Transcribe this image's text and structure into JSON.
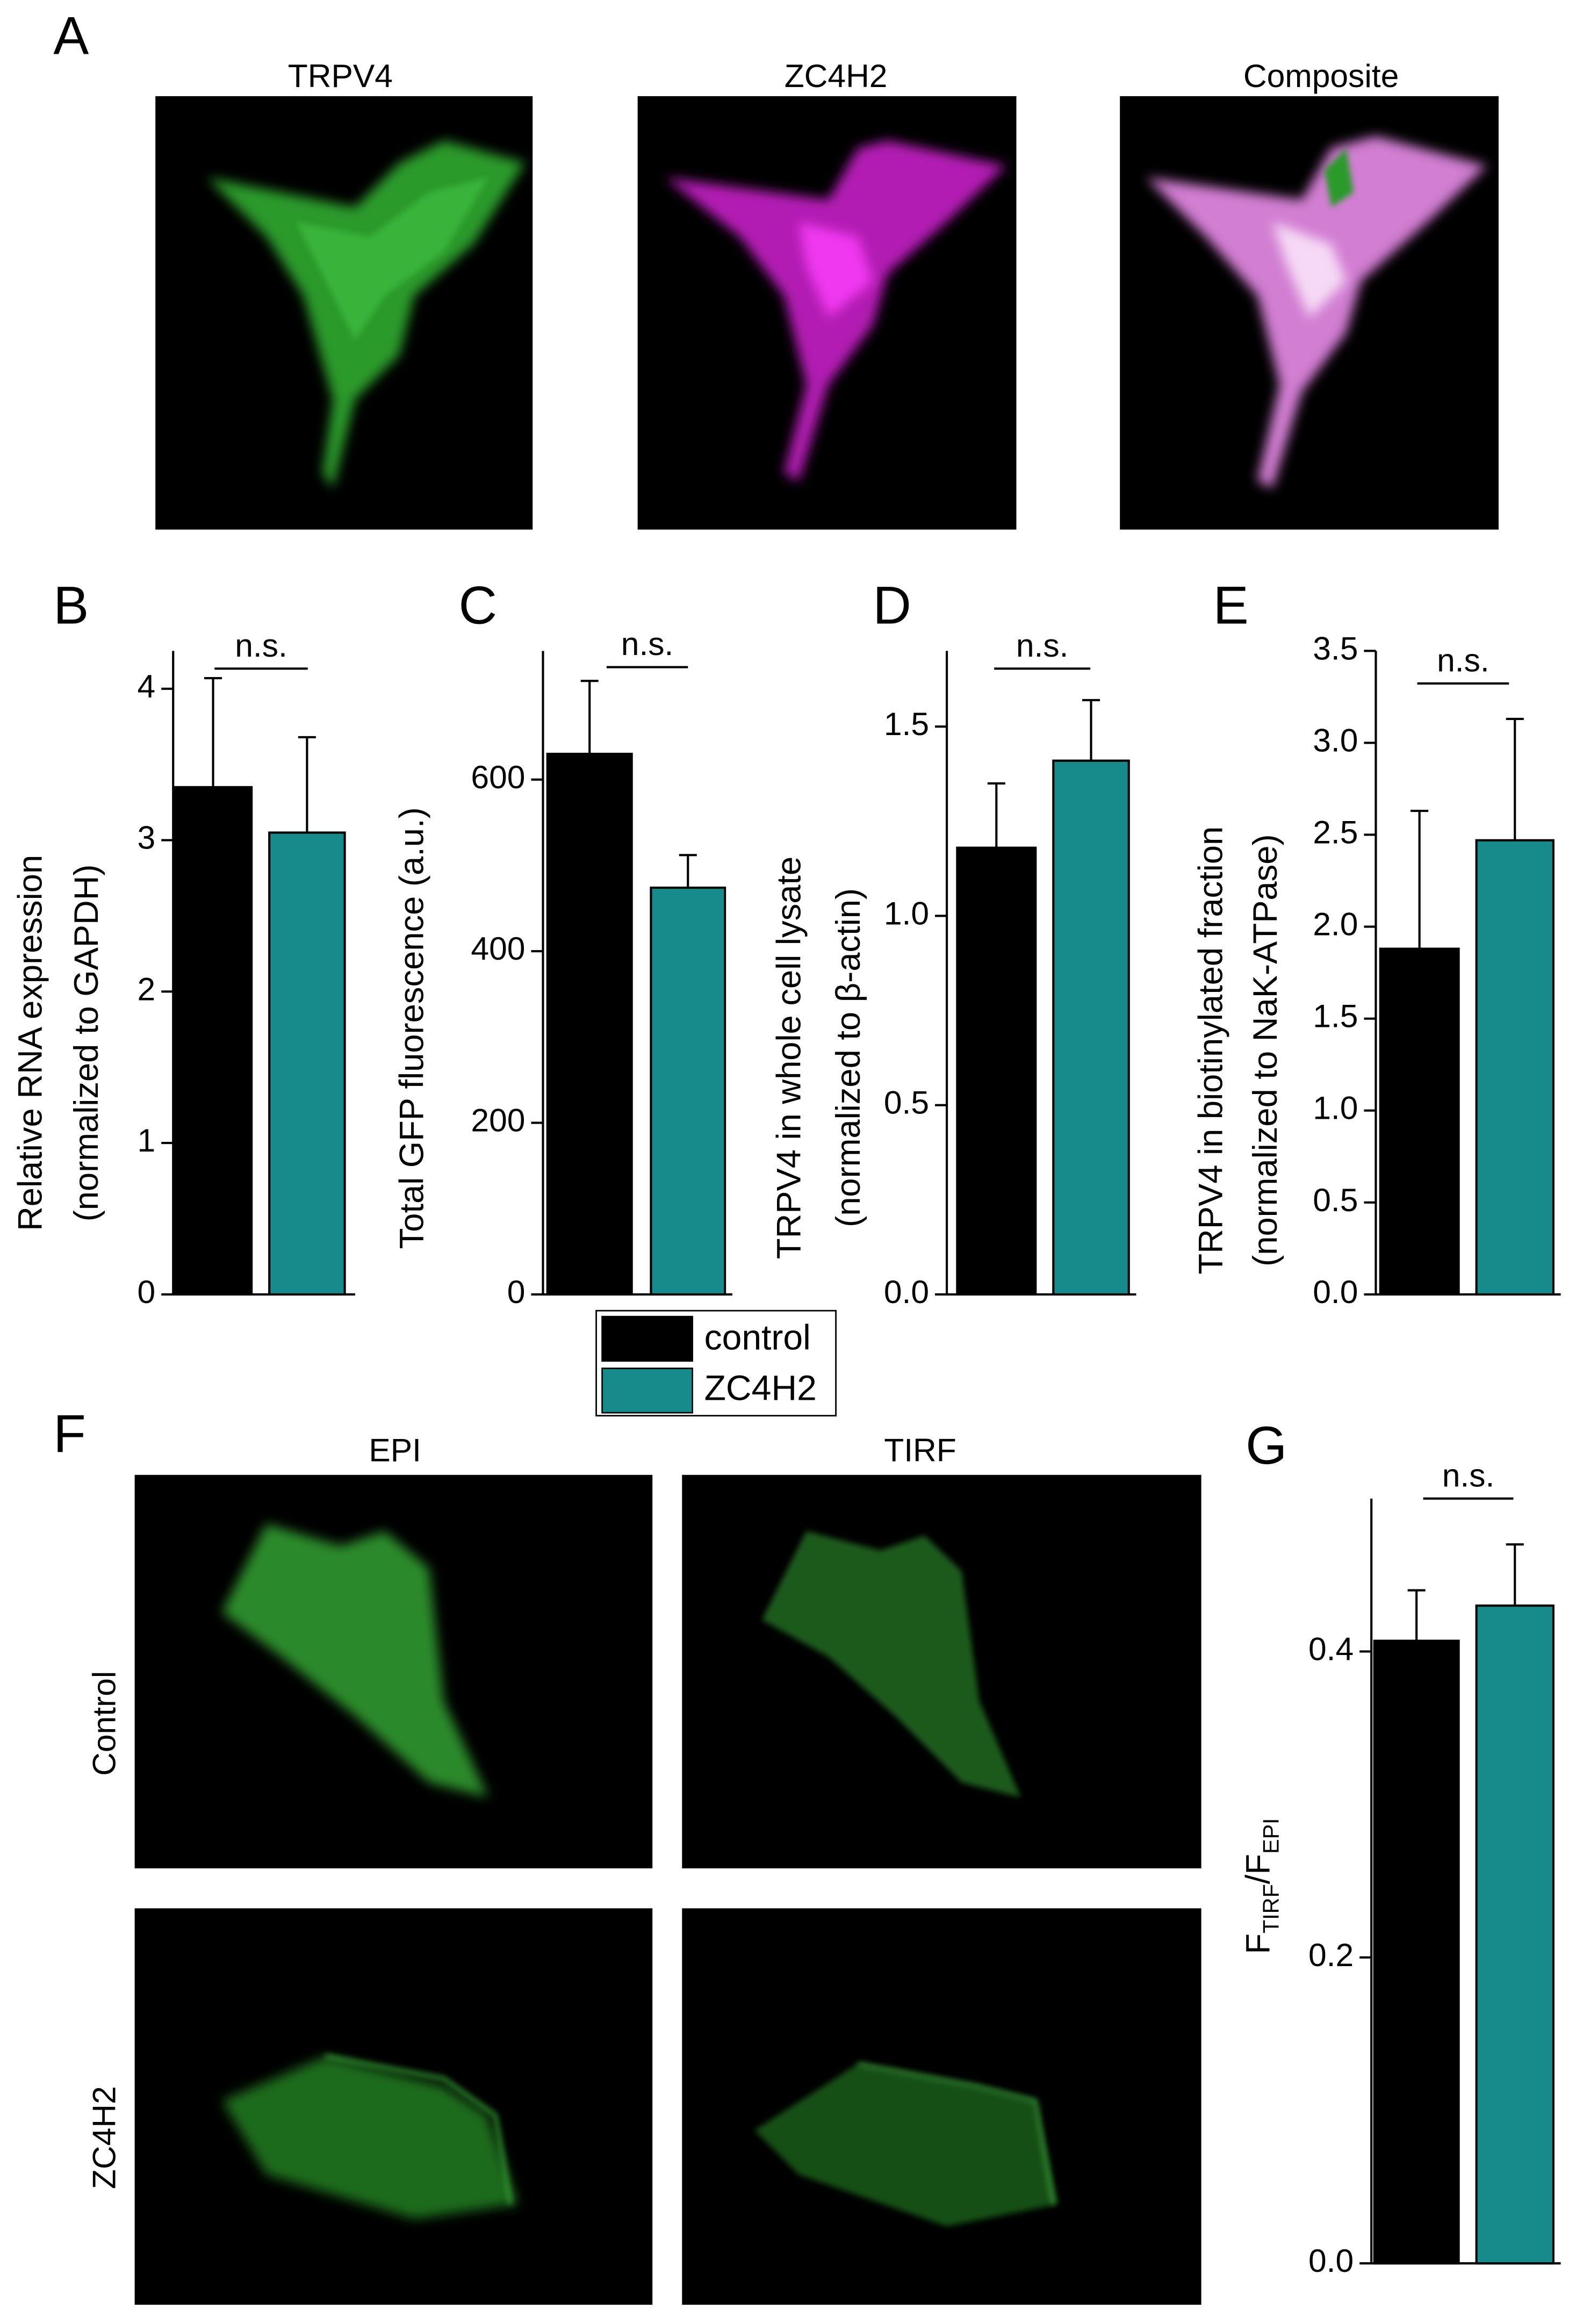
{
  "panel_labels": [
    "A",
    "B",
    "C",
    "D",
    "E",
    "F",
    "G"
  ],
  "images_a": {
    "titles": [
      "TRPV4",
      "ZC4H2",
      "Composite"
    ]
  },
  "images_f": {
    "columns": [
      "EPI",
      "TIRF"
    ],
    "rows": [
      "Control",
      "ZC4H2"
    ]
  },
  "legend": {
    "entries": [
      {
        "name": "control",
        "color": "#000000"
      },
      {
        "name": "ZC4H2",
        "color": "#178b8b"
      }
    ]
  },
  "chart_data": [
    {
      "type": "bar",
      "ylabel": [
        "Relative RNA expression",
        "(normalized to GAPDH)"
      ],
      "values": [
        3.35,
        3.05
      ],
      "errors": [
        0.72,
        0.63
      ],
      "ylim": [
        0,
        4.25
      ],
      "yticks": [
        0,
        1,
        2,
        3,
        4
      ],
      "annotation": "n.s."
    },
    {
      "type": "bar",
      "ylabel": [
        "Total GFP fluorescence (a.u.)"
      ],
      "values": [
        630,
        474
      ],
      "errors": [
        85,
        38
      ],
      "ylim": [
        0,
        750
      ],
      "yticks": [
        0,
        200,
        400,
        600
      ],
      "annotation": "n.s."
    },
    {
      "type": "bar",
      "ylabel": [
        "TRPV4 in whole cell lysate",
        "(normalized to β-actin)"
      ],
      "values": [
        1.18,
        1.41
      ],
      "errors": [
        0.17,
        0.16
      ],
      "ylim": [
        0,
        1.7
      ],
      "yticks": [
        {
          "value": 0,
          "label": "0.0"
        },
        0.5,
        {
          "value": 1,
          "label": "1.0"
        },
        1.5
      ],
      "annotation": "n.s."
    },
    {
      "type": "bar",
      "ylabel": [
        "TRPV4 in biotinylated fraction",
        "(normalized to NaK-ATPase)"
      ],
      "values": [
        1.88,
        2.47
      ],
      "errors": [
        0.75,
        0.66
      ],
      "ylim": [
        0,
        3.5
      ],
      "yticks": [
        {
          "value": 0,
          "label": "0.0"
        },
        0.5,
        {
          "value": 1,
          "label": "1.0"
        },
        1.5,
        {
          "value": 2,
          "label": "2.0"
        },
        2.5,
        {
          "value": 3,
          "label": "3.0"
        },
        3.5
      ],
      "annotation": "n.s."
    },
    {
      "type": "bar",
      "ylabel_parts": [
        {
          "text": "F",
          "sub": false
        },
        {
          "text": "TIRF",
          "sub": true
        },
        {
          "text": "/F",
          "sub": false
        },
        {
          "text": "EPI",
          "sub": true
        }
      ],
      "values": [
        0.407,
        0.43
      ],
      "errors": [
        0.033,
        0.04
      ],
      "ylim": [
        0,
        0.5
      ],
      "yticks": [
        {
          "value": 0,
          "label": "0.0"
        },
        0.2,
        0.4
      ],
      "annotation": "n.s."
    }
  ]
}
